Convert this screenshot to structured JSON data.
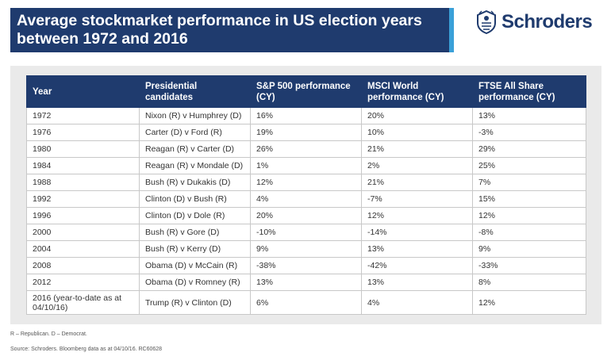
{
  "title": {
    "line1": "Average stockmarket performance in US election years",
    "line2": "between 1972 and 2016"
  },
  "logo": {
    "text": "Schroders",
    "icon": "crest-icon"
  },
  "table": {
    "headers": [
      [
        "Year"
      ],
      [
        "Presidential",
        "candidates"
      ],
      [
        "S&P 500 performance",
        "(CY)"
      ],
      [
        "MSCI World",
        "performance (CY)"
      ],
      [
        "FTSE All Share",
        "performance (CY)"
      ]
    ],
    "rows": [
      [
        "1972",
        "Nixon (R) v Humphrey (D)",
        "16%",
        "20%",
        "13%"
      ],
      [
        "1976",
        "Carter (D) v Ford (R)",
        "19%",
        "10%",
        "-3%"
      ],
      [
        "1980",
        "Reagan (R) v Carter (D)",
        "26%",
        "21%",
        "29%"
      ],
      [
        "1984",
        "Reagan (R) v Mondale (D)",
        "1%",
        "2%",
        "25%"
      ],
      [
        "1988",
        "Bush (R) v Dukakis (D)",
        "12%",
        "21%",
        "7%"
      ],
      [
        "1992",
        "Clinton (D) v Bush (R)",
        "4%",
        "-7%",
        "15%"
      ],
      [
        "1996",
        "Clinton (D) v Dole (R)",
        "20%",
        "12%",
        "12%"
      ],
      [
        "2000",
        "Bush (R) v Gore (D)",
        "-10%",
        "-14%",
        "-8%"
      ],
      [
        "2004",
        "Bush (R) v Kerry (D)",
        "9%",
        "13%",
        "9%"
      ],
      [
        "2008",
        "Obama (D) v McCain (R)",
        "-38%",
        "-42%",
        "-33%"
      ],
      [
        "2012",
        "Obama (D) v Romney (R)",
        "13%",
        "13%",
        "8%"
      ],
      [
        "2016 (year-to-date as at 04/10/16)",
        "Trump (R) v Clinton (D)",
        "6%",
        "4%",
        "12%"
      ]
    ]
  },
  "footnotes": {
    "legend": "R – Republican. D – Democrat.",
    "source": "Source: Schroders. Bloomberg data as at 04/10/16. RC60628"
  },
  "colors": {
    "navy": "#1f3b6e",
    "accent": "#3aa0d8",
    "panel": "#eaeaea"
  }
}
